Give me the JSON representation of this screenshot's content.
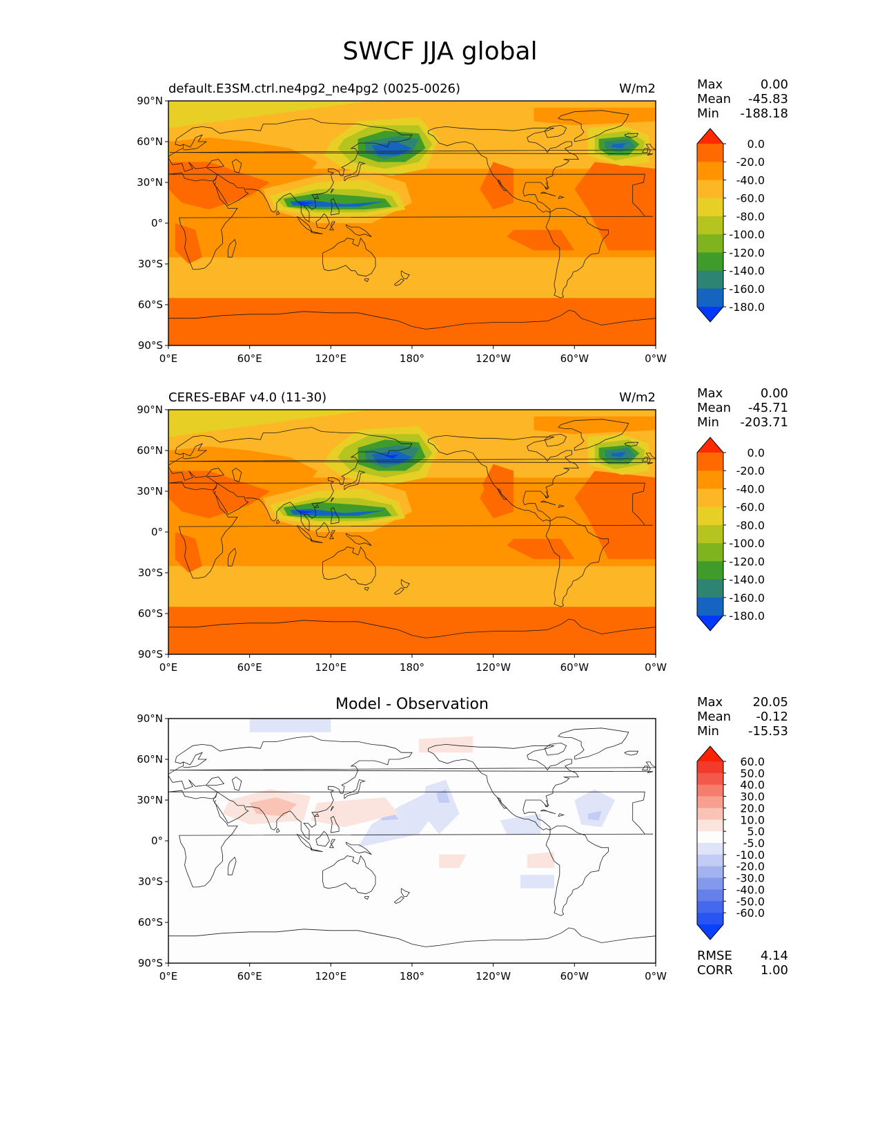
{
  "title": "SWCF JJA global",
  "panels": [
    {
      "id": "model",
      "left_title": "default.E3SM.ctrl.ne4pg2_ne4pg2 (0025-0026)",
      "center_title": "",
      "units": "W/m2",
      "stats": [
        {
          "key": "Max",
          "value": "0.00"
        },
        {
          "key": "Mean",
          "value": "-45.83"
        },
        {
          "key": "Min",
          "value": "-188.18"
        }
      ],
      "colorbar": {
        "colors": [
          "#ff2a00",
          "#ff6a00",
          "#ff9400",
          "#fdb726",
          "#e8cf25",
          "#b6c41f",
          "#7fb41e",
          "#3f9b2a",
          "#2e8472",
          "#1565c0",
          "#0038ff"
        ],
        "labels": [
          "0.0",
          "-20.0",
          "-40.0",
          "-60.0",
          "-80.0",
          "-100.0",
          "-120.0",
          "-140.0",
          "-160.0",
          "-180.0"
        ]
      }
    },
    {
      "id": "obs",
      "left_title": "CERES-EBAF v4.0 (11-30)",
      "center_title": "",
      "units": "W/m2",
      "stats": [
        {
          "key": "Max",
          "value": "0.00"
        },
        {
          "key": "Mean",
          "value": "-45.71"
        },
        {
          "key": "Min",
          "value": "-203.71"
        }
      ],
      "colorbar": {
        "colors": [
          "#ff2a00",
          "#ff6a00",
          "#ff9400",
          "#fdb726",
          "#e8cf25",
          "#b6c41f",
          "#7fb41e",
          "#3f9b2a",
          "#2e8472",
          "#1565c0",
          "#0038ff"
        ],
        "labels": [
          "0.0",
          "-20.0",
          "-40.0",
          "-60.0",
          "-80.0",
          "-100.0",
          "-120.0",
          "-140.0",
          "-160.0",
          "-180.0"
        ]
      }
    },
    {
      "id": "diff",
      "left_title": "",
      "center_title": "Model - Observation",
      "units": "",
      "stats": [
        {
          "key": "Max",
          "value": "20.05"
        },
        {
          "key": "Mean",
          "value": "-0.12"
        },
        {
          "key": "Min",
          "value": "-15.53"
        }
      ],
      "bottom_stats": [
        {
          "key": "RMSE",
          "value": "4.14"
        },
        {
          "key": "CORR",
          "value": "1.00"
        }
      ],
      "colorbar": {
        "colors": [
          "#ff2200",
          "#f23b2b",
          "#f4584a",
          "#f57d6e",
          "#f7a090",
          "#f9c3b6",
          "#fce4de",
          "#fdfdfd",
          "#dfe4f8",
          "#c2ccf4",
          "#a3b3f0",
          "#8498ec",
          "#6580ea",
          "#4468ee",
          "#2855f2",
          "#0a40ff"
        ],
        "labels": [
          "60.0",
          "50.0",
          "40.0",
          "30.0",
          "20.0",
          "10.0",
          "5.0",
          "-5.0",
          "-10.0",
          "-20.0",
          "-30.0",
          "-40.0",
          "-50.0",
          "-60.0"
        ]
      }
    }
  ],
  "axes": {
    "lat_labels": [
      "90°N",
      "60°N",
      "30°N",
      "0°",
      "30°S",
      "60°S",
      "90°S"
    ],
    "lon_labels": [
      "0°E",
      "60°E",
      "120°E",
      "180°",
      "120°W",
      "60°W",
      "0°W"
    ]
  }
}
